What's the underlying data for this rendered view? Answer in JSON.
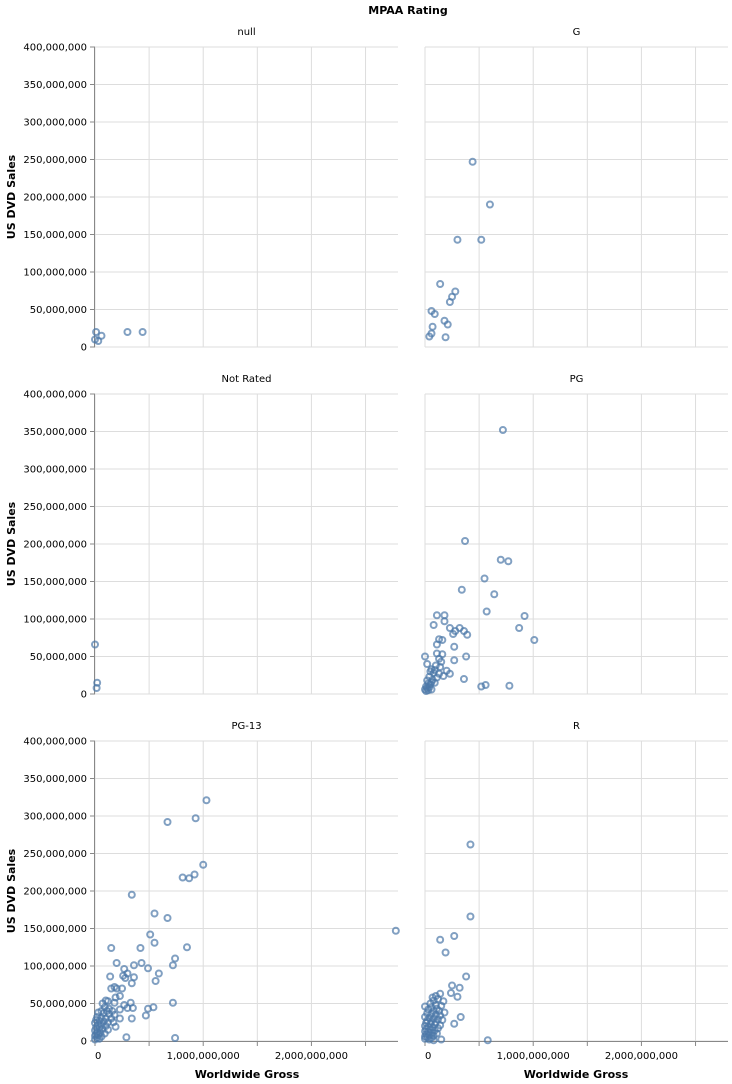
{
  "chart_data": {
    "type": "scatter",
    "title": "MPAA Rating",
    "xlabel": "Worldwide Gross",
    "ylabel": "US DVD Sales",
    "xlim": [
      0,
      2800000000
    ],
    "ylim": [
      0,
      400000000
    ],
    "x_ticks": [
      0,
      1000000000,
      2000000000
    ],
    "x_tick_labels": [
      "0",
      "1,000,000,000",
      "2,000,000,000"
    ],
    "y_ticks": [
      0,
      50000000,
      100000000,
      150000000,
      200000000,
      250000000,
      300000000,
      350000000,
      400000000
    ],
    "y_tick_labels": [
      "0",
      "50,000,000",
      "100,000,000",
      "150,000,000",
      "200,000,000",
      "250,000,000",
      "300,000,000",
      "350,000,000",
      "400,000,000"
    ],
    "grid": true,
    "color": "#4c78a8",
    "facets": [
      {
        "label": "null",
        "points": [
          [
            0,
            10000000
          ],
          [
            10000000,
            20000000
          ],
          [
            60000000,
            15000000
          ],
          [
            30000000,
            8000000
          ],
          [
            300000000,
            20000000
          ],
          [
            440000000,
            20000000
          ]
        ]
      },
      {
        "label": "G",
        "points": [
          [
            440000000,
            247000000
          ],
          [
            600000000,
            190000000
          ],
          [
            300000000,
            143000000
          ],
          [
            520000000,
            143000000
          ],
          [
            140000000,
            84000000
          ],
          [
            280000000,
            74000000
          ],
          [
            250000000,
            67000000
          ],
          [
            230000000,
            60000000
          ],
          [
            60000000,
            48000000
          ],
          [
            90000000,
            44000000
          ],
          [
            180000000,
            35000000
          ],
          [
            210000000,
            30000000
          ],
          [
            70000000,
            27000000
          ],
          [
            60000000,
            18000000
          ],
          [
            40000000,
            14000000
          ],
          [
            190000000,
            13000000
          ]
        ]
      },
      {
        "label": "Not Rated",
        "points": [
          [
            0,
            66000000
          ],
          [
            20000000,
            15000000
          ],
          [
            15000000,
            8000000
          ]
        ]
      },
      {
        "label": "PG",
        "points": [
          [
            720000000,
            352000000
          ],
          [
            370000000,
            204000000
          ],
          [
            700000000,
            179000000
          ],
          [
            770000000,
            177000000
          ],
          [
            550000000,
            154000000
          ],
          [
            640000000,
            133000000
          ],
          [
            340000000,
            139000000
          ],
          [
            570000000,
            110000000
          ],
          [
            920000000,
            104000000
          ],
          [
            110000000,
            105000000
          ],
          [
            180000000,
            105000000
          ],
          [
            180000000,
            97000000
          ],
          [
            80000000,
            92000000
          ],
          [
            870000000,
            88000000
          ],
          [
            230000000,
            88000000
          ],
          [
            320000000,
            88000000
          ],
          [
            360000000,
            84000000
          ],
          [
            280000000,
            84000000
          ],
          [
            260000000,
            80000000
          ],
          [
            390000000,
            79000000
          ],
          [
            1010000000,
            72000000
          ],
          [
            130000000,
            73000000
          ],
          [
            160000000,
            72000000
          ],
          [
            110000000,
            66000000
          ],
          [
            270000000,
            63000000
          ],
          [
            0,
            50000000
          ],
          [
            110000000,
            54000000
          ],
          [
            160000000,
            53000000
          ],
          [
            380000000,
            50000000
          ],
          [
            270000000,
            45000000
          ],
          [
            130000000,
            47000000
          ],
          [
            150000000,
            43000000
          ],
          [
            20000000,
            40000000
          ],
          [
            100000000,
            38000000
          ],
          [
            140000000,
            36000000
          ],
          [
            60000000,
            33000000
          ],
          [
            90000000,
            32000000
          ],
          [
            200000000,
            31000000
          ],
          [
            50000000,
            30000000
          ],
          [
            80000000,
            28000000
          ],
          [
            130000000,
            27000000
          ],
          [
            230000000,
            27000000
          ],
          [
            170000000,
            24000000
          ],
          [
            40000000,
            23000000
          ],
          [
            110000000,
            22000000
          ],
          [
            360000000,
            20000000
          ],
          [
            70000000,
            19000000
          ],
          [
            20000000,
            18000000
          ],
          [
            60000000,
            16000000
          ],
          [
            90000000,
            15000000
          ],
          [
            30000000,
            14000000
          ],
          [
            50000000,
            13000000
          ],
          [
            560000000,
            12000000
          ],
          [
            520000000,
            10000000
          ],
          [
            780000000,
            11000000
          ],
          [
            10000000,
            10000000
          ],
          [
            40000000,
            9000000
          ],
          [
            20000000,
            8000000
          ],
          [
            0,
            6000000
          ],
          [
            60000000,
            6000000
          ],
          [
            30000000,
            5000000
          ],
          [
            10000000,
            4000000
          ]
        ]
      },
      {
        "label": "PG-13",
        "points": [
          [
            1030000000,
            321000000
          ],
          [
            670000000,
            292000000
          ],
          [
            930000000,
            297000000
          ],
          [
            1000000000,
            235000000
          ],
          [
            920000000,
            222000000
          ],
          [
            810000000,
            218000000
          ],
          [
            870000000,
            217000000
          ],
          [
            340000000,
            195000000
          ],
          [
            550000000,
            170000000
          ],
          [
            670000000,
            164000000
          ],
          [
            510000000,
            142000000
          ],
          [
            2780000000,
            147000000
          ],
          [
            550000000,
            131000000
          ],
          [
            150000000,
            124000000
          ],
          [
            420000000,
            124000000
          ],
          [
            850000000,
            125000000
          ],
          [
            740000000,
            110000000
          ],
          [
            720000000,
            101000000
          ],
          [
            200000000,
            104000000
          ],
          [
            360000000,
            101000000
          ],
          [
            430000000,
            104000000
          ],
          [
            490000000,
            97000000
          ],
          [
            270000000,
            96000000
          ],
          [
            590000000,
            90000000
          ],
          [
            300000000,
            90000000
          ],
          [
            140000000,
            86000000
          ],
          [
            260000000,
            87000000
          ],
          [
            360000000,
            85000000
          ],
          [
            560000000,
            80000000
          ],
          [
            280000000,
            84000000
          ],
          [
            340000000,
            77000000
          ],
          [
            180000000,
            72000000
          ],
          [
            200000000,
            70000000
          ],
          [
            150000000,
            70000000
          ],
          [
            250000000,
            70000000
          ],
          [
            230000000,
            60000000
          ],
          [
            190000000,
            58000000
          ],
          [
            100000000,
            54000000
          ],
          [
            120000000,
            53000000
          ],
          [
            70000000,
            50000000
          ],
          [
            180000000,
            51000000
          ],
          [
            330000000,
            51000000
          ],
          [
            720000000,
            51000000
          ],
          [
            270000000,
            48000000
          ],
          [
            540000000,
            45000000
          ],
          [
            490000000,
            43000000
          ],
          [
            300000000,
            44000000
          ],
          [
            350000000,
            44000000
          ],
          [
            90000000,
            45000000
          ],
          [
            130000000,
            43000000
          ],
          [
            230000000,
            42000000
          ],
          [
            60000000,
            40000000
          ],
          [
            110000000,
            40000000
          ],
          [
            160000000,
            40000000
          ],
          [
            470000000,
            34000000
          ],
          [
            30000000,
            38000000
          ],
          [
            80000000,
            37000000
          ],
          [
            130000000,
            36000000
          ],
          [
            180000000,
            35000000
          ],
          [
            20000000,
            32000000
          ],
          [
            60000000,
            31000000
          ],
          [
            100000000,
            30000000
          ],
          [
            150000000,
            30000000
          ],
          [
            340000000,
            30000000
          ],
          [
            230000000,
            30000000
          ],
          [
            10000000,
            28000000
          ],
          [
            40000000,
            27000000
          ],
          [
            80000000,
            26000000
          ],
          [
            120000000,
            25000000
          ],
          [
            170000000,
            25000000
          ],
          [
            0,
            24000000
          ],
          [
            30000000,
            22000000
          ],
          [
            60000000,
            21000000
          ],
          [
            100000000,
            20000000
          ],
          [
            190000000,
            19000000
          ],
          [
            10000000,
            18000000
          ],
          [
            40000000,
            17000000
          ],
          [
            70000000,
            16000000
          ],
          [
            120000000,
            15000000
          ],
          [
            0,
            14000000
          ],
          [
            20000000,
            12000000
          ],
          [
            50000000,
            11000000
          ],
          [
            90000000,
            10000000
          ],
          [
            10000000,
            9000000
          ],
          [
            30000000,
            8000000
          ],
          [
            0,
            7000000
          ],
          [
            60000000,
            6000000
          ],
          [
            290000000,
            5000000
          ],
          [
            740000000,
            4000000
          ],
          [
            20000000,
            4000000
          ],
          [
            0,
            2000000
          ],
          [
            40000000,
            3000000
          ]
        ]
      },
      {
        "label": "R",
        "points": [
          [
            420000000,
            262000000
          ],
          [
            420000000,
            166000000
          ],
          [
            270000000,
            140000000
          ],
          [
            140000000,
            135000000
          ],
          [
            190000000,
            118000000
          ],
          [
            380000000,
            86000000
          ],
          [
            250000000,
            74000000
          ],
          [
            320000000,
            71000000
          ],
          [
            240000000,
            64000000
          ],
          [
            140000000,
            63000000
          ],
          [
            300000000,
            59000000
          ],
          [
            100000000,
            60000000
          ],
          [
            70000000,
            58000000
          ],
          [
            120000000,
            56000000
          ],
          [
            80000000,
            54000000
          ],
          [
            170000000,
            53000000
          ],
          [
            50000000,
            50000000
          ],
          [
            100000000,
            48000000
          ],
          [
            150000000,
            47000000
          ],
          [
            0,
            46000000
          ],
          [
            60000000,
            45000000
          ],
          [
            110000000,
            43000000
          ],
          [
            30000000,
            42000000
          ],
          [
            80000000,
            40000000
          ],
          [
            130000000,
            40000000
          ],
          [
            180000000,
            38000000
          ],
          [
            20000000,
            37000000
          ],
          [
            60000000,
            36000000
          ],
          [
            100000000,
            35000000
          ],
          [
            140000000,
            34000000
          ],
          [
            330000000,
            32000000
          ],
          [
            0,
            32000000
          ],
          [
            40000000,
            31000000
          ],
          [
            80000000,
            30000000
          ],
          [
            120000000,
            29000000
          ],
          [
            160000000,
            28000000
          ],
          [
            20000000,
            27000000
          ],
          [
            60000000,
            26000000
          ],
          [
            100000000,
            25000000
          ],
          [
            10000000,
            24000000
          ],
          [
            50000000,
            23000000
          ],
          [
            270000000,
            23000000
          ],
          [
            90000000,
            22000000
          ],
          [
            140000000,
            21000000
          ],
          [
            0,
            20000000
          ],
          [
            30000000,
            19000000
          ],
          [
            70000000,
            18000000
          ],
          [
            120000000,
            17000000
          ],
          [
            10000000,
            16000000
          ],
          [
            50000000,
            15000000
          ],
          [
            90000000,
            14000000
          ],
          [
            0,
            13000000
          ],
          [
            30000000,
            12000000
          ],
          [
            70000000,
            11000000
          ],
          [
            110000000,
            10000000
          ],
          [
            10000000,
            9000000
          ],
          [
            40000000,
            8000000
          ],
          [
            80000000,
            7000000
          ],
          [
            0,
            6000000
          ],
          [
            20000000,
            5000000
          ],
          [
            60000000,
            4000000
          ],
          [
            0,
            3000000
          ],
          [
            40000000,
            2000000
          ],
          [
            150000000,
            2000000
          ],
          [
            80000000,
            1000000
          ],
          [
            580000000,
            1000000
          ]
        ]
      }
    ]
  }
}
